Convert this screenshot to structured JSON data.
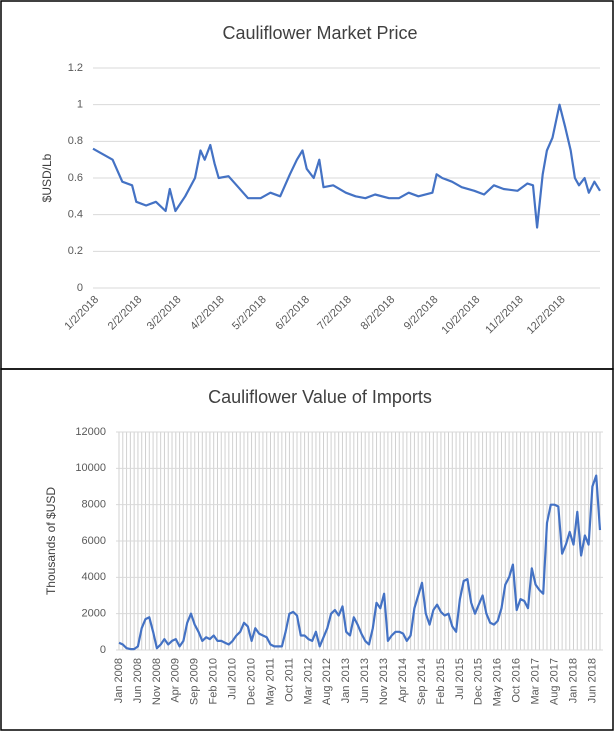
{
  "chart_data": [
    {
      "type": "line",
      "title": "Cauliflower Market Price",
      "y_label": "$USD/Lb",
      "color": "#4472c4",
      "grid": true,
      "xlim": [
        "1/2/2018",
        "12/31/2018"
      ],
      "xticks": [
        "1/2/2018",
        "2/2/2018",
        "3/2/2018",
        "4/2/2018",
        "5/2/2018",
        "6/2/2018",
        "7/2/2018",
        "8/2/2018",
        "9/2/2018",
        "10/2/2018",
        "11/2/2018",
        "12/2/2018"
      ],
      "ylim": [
        0,
        1.2
      ],
      "yticks": [
        0,
        0.2,
        0.4,
        0.6,
        0.8,
        1,
        1.2
      ],
      "x": [
        "1/2/2018",
        "1/9/2018",
        "1/16/2018",
        "1/23/2018",
        "1/30/2018",
        "2/2/2018",
        "2/9/2018",
        "2/16/2018",
        "2/23/2018",
        "2/26/2018",
        "3/2/2018",
        "3/9/2018",
        "3/16/2018",
        "3/20/2018",
        "3/23/2018",
        "3/27/2018",
        "3/30/2018",
        "4/2/2018",
        "4/9/2018",
        "4/16/2018",
        "4/23/2018",
        "5/2/2018",
        "5/9/2018",
        "5/16/2018",
        "5/23/2018",
        "5/28/2018",
        "6/1/2018",
        "6/4/2018",
        "6/9/2018",
        "6/13/2018",
        "6/16/2018",
        "6/23/2018",
        "7/2/2018",
        "7/9/2018",
        "7/16/2018",
        "7/23/2018",
        "8/2/2018",
        "8/9/2018",
        "8/16/2018",
        "8/23/2018",
        "9/2/2018",
        "9/5/2018",
        "9/9/2018",
        "9/16/2018",
        "9/23/2018",
        "10/2/2018",
        "10/9/2018",
        "10/16/2018",
        "10/23/2018",
        "11/2/2018",
        "11/9/2018",
        "11/13/2018",
        "11/16/2018",
        "11/20/2018",
        "11/23/2018",
        "11/27/2018",
        "12/2/2018",
        "12/6/2018",
        "12/10/2018",
        "12/13/2018",
        "12/16/2018",
        "12/20/2018",
        "12/23/2018",
        "12/27/2018",
        "12/31/2018"
      ],
      "values": [
        0.76,
        0.73,
        0.7,
        0.58,
        0.56,
        0.47,
        0.45,
        0.47,
        0.42,
        0.54,
        0.42,
        0.5,
        0.6,
        0.75,
        0.7,
        0.78,
        0.68,
        0.6,
        0.61,
        0.55,
        0.49,
        0.49,
        0.52,
        0.5,
        0.62,
        0.7,
        0.75,
        0.65,
        0.6,
        0.7,
        0.55,
        0.56,
        0.52,
        0.5,
        0.49,
        0.51,
        0.49,
        0.49,
        0.52,
        0.5,
        0.52,
        0.62,
        0.6,
        0.58,
        0.55,
        0.53,
        0.51,
        0.56,
        0.54,
        0.53,
        0.57,
        0.56,
        0.33,
        0.62,
        0.75,
        0.82,
        1.0,
        0.88,
        0.75,
        0.6,
        0.56,
        0.6,
        0.52,
        0.58,
        0.53
      ]
    },
    {
      "type": "line",
      "title": "Cauliflower Value of Imports",
      "y_label": "Thousands of $USD",
      "color": "#4472c4",
      "grid": true,
      "xgrid": true,
      "ylim": [
        0,
        12000
      ],
      "yticks": [
        0,
        2000,
        4000,
        6000,
        8000,
        10000,
        12000
      ],
      "categories": [
        "Jan 2008",
        null,
        null,
        null,
        null,
        "Jun 2008",
        null,
        null,
        null,
        null,
        "Nov 2008",
        null,
        null,
        null,
        null,
        "Apr 2009",
        null,
        null,
        null,
        null,
        "Sep 2009",
        null,
        null,
        null,
        null,
        "Feb 2010",
        null,
        null,
        null,
        null,
        "Jul 2010",
        null,
        null,
        null,
        null,
        "Dec 2010",
        null,
        null,
        null,
        null,
        "May 2011",
        null,
        null,
        null,
        null,
        "Oct 2011",
        null,
        null,
        null,
        null,
        "Mar 2012",
        null,
        null,
        null,
        null,
        "Aug 2012",
        null,
        null,
        null,
        null,
        "Jan 2013",
        null,
        null,
        null,
        null,
        "Jun 2013",
        null,
        null,
        null,
        null,
        "Nov 2013",
        null,
        null,
        null,
        null,
        "Apr 2014",
        null,
        null,
        null,
        null,
        "Sep 2014",
        null,
        null,
        null,
        null,
        "Feb 2015",
        null,
        null,
        null,
        null,
        "Jul 2015",
        null,
        null,
        null,
        null,
        "Dec 2015",
        null,
        null,
        null,
        null,
        "May 2016",
        null,
        null,
        null,
        null,
        "Oct 2016",
        null,
        null,
        null,
        null,
        "Mar 2017",
        null,
        null,
        null,
        null,
        "Aug 2017",
        null,
        null,
        null,
        null,
        "Jan 2018",
        null,
        null,
        null,
        null,
        "Jun 2018",
        null,
        null
      ],
      "values": [
        400,
        300,
        100,
        50,
        50,
        200,
        1200,
        1700,
        1800,
        1000,
        100,
        300,
        600,
        300,
        500,
        600,
        200,
        500,
        1500,
        2000,
        1400,
        1000,
        500,
        700,
        600,
        800,
        500,
        500,
        400,
        300,
        500,
        800,
        1000,
        1500,
        1300,
        500,
        1200,
        900,
        800,
        700,
        300,
        200,
        200,
        200,
        1000,
        2000,
        2100,
        1900,
        800,
        800,
        600,
        500,
        1000,
        200,
        700,
        1200,
        2000,
        2200,
        1900,
        2400,
        1000,
        800,
        1800,
        1400,
        900,
        500,
        300,
        1200,
        2600,
        2300,
        3100,
        500,
        800,
        1000,
        1000,
        900,
        500,
        800,
        2300,
        3000,
        3700,
        2000,
        1400,
        2200,
        2500,
        2100,
        1900,
        2000,
        1300,
        1000,
        2800,
        3800,
        3900,
        2600,
        2000,
        2500,
        3000,
        2000,
        1500,
        1400,
        1600,
        2300,
        3600,
        4000,
        4700,
        2200,
        2800,
        2700,
        2300,
        4500,
        3600,
        3300,
        3100,
        7000,
        8000,
        8000,
        7900,
        5300,
        5800,
        6500,
        5800,
        7600,
        5200,
        6300,
        5800,
        9000,
        9600,
        6600
      ]
    }
  ]
}
